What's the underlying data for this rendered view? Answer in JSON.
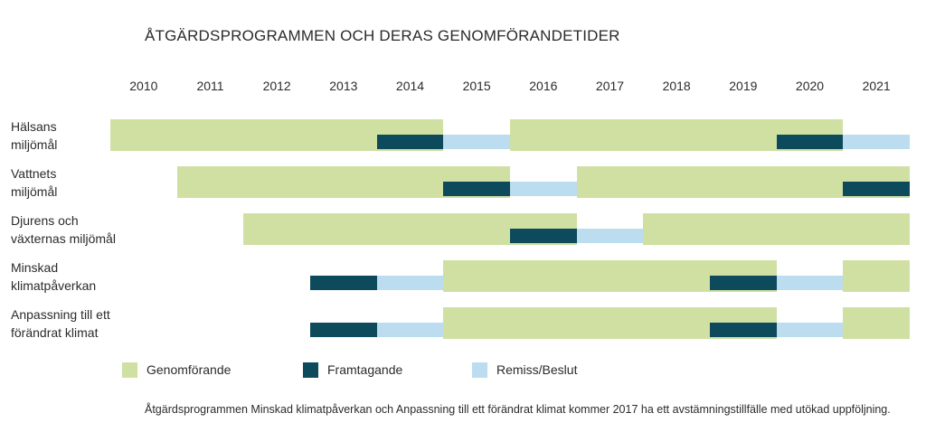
{
  "chart_data": {
    "type": "gantt",
    "title": "ÅTGÄRDSPROGRAMMEN OCH DERAS GENOMFÖRANDETIDER",
    "x_range": [
      2010,
      2022
    ],
    "years": [
      "2010",
      "2011",
      "2012",
      "2013",
      "2014",
      "2015",
      "2016",
      "2017",
      "2018",
      "2019",
      "2020",
      "2021"
    ],
    "legend": [
      {
        "key": "genomforande",
        "label": "Genomförande",
        "color": "#cfe0a2"
      },
      {
        "key": "framtagande",
        "label": "Framtagande",
        "color": "#0c4a5c"
      },
      {
        "key": "remiss",
        "label": "Remiss/Beslut",
        "color": "#bcdcef"
      }
    ],
    "rows": [
      {
        "label": [
          "Hälsans",
          "miljömål"
        ],
        "segments": [
          {
            "phase": "genomforande",
            "start": 2010,
            "end": 2015
          },
          {
            "phase": "framtagande",
            "start": 2014,
            "end": 2015
          },
          {
            "phase": "remiss",
            "start": 2015,
            "end": 2016
          },
          {
            "phase": "genomforande",
            "start": 2016,
            "end": 2021
          },
          {
            "phase": "framtagande",
            "start": 2020,
            "end": 2021
          },
          {
            "phase": "remiss",
            "start": 2021,
            "end": 2022
          }
        ]
      },
      {
        "label": [
          "Vattnets",
          "miljömål"
        ],
        "segments": [
          {
            "phase": "genomforande",
            "start": 2011,
            "end": 2016
          },
          {
            "phase": "framtagande",
            "start": 2015,
            "end": 2016
          },
          {
            "phase": "remiss",
            "start": 2016,
            "end": 2017
          },
          {
            "phase": "genomforande",
            "start": 2017,
            "end": 2022
          },
          {
            "phase": "framtagande",
            "start": 2021,
            "end": 2022
          }
        ]
      },
      {
        "label": [
          "Djurens och",
          "växternas miljömål"
        ],
        "segments": [
          {
            "phase": "genomforande",
            "start": 2012,
            "end": 2017
          },
          {
            "phase": "framtagande",
            "start": 2016,
            "end": 2017
          },
          {
            "phase": "remiss",
            "start": 2017,
            "end": 2018
          },
          {
            "phase": "genomforande",
            "start": 2018,
            "end": 2022
          }
        ]
      },
      {
        "label": [
          "Minskad",
          "klimatpåverkan"
        ],
        "segments": [
          {
            "phase": "framtagande",
            "start": 2013,
            "end": 2014
          },
          {
            "phase": "remiss",
            "start": 2014,
            "end": 2015
          },
          {
            "phase": "genomforande",
            "start": 2015,
            "end": 2020
          },
          {
            "phase": "framtagande",
            "start": 2019,
            "end": 2020
          },
          {
            "phase": "remiss",
            "start": 2020,
            "end": 2021
          },
          {
            "phase": "genomforande",
            "start": 2021,
            "end": 2022
          }
        ]
      },
      {
        "label": [
          "Anpassning till ett",
          "förändrat klimat"
        ],
        "segments": [
          {
            "phase": "framtagande",
            "start": 2013,
            "end": 2014
          },
          {
            "phase": "remiss",
            "start": 2014,
            "end": 2015
          },
          {
            "phase": "genomforande",
            "start": 2015,
            "end": 2020
          },
          {
            "phase": "framtagande",
            "start": 2019,
            "end": 2020
          },
          {
            "phase": "remiss",
            "start": 2020,
            "end": 2021
          },
          {
            "phase": "genomforande",
            "start": 2021,
            "end": 2022
          }
        ]
      }
    ],
    "footnote": "Åtgärdsprogrammen Minskad klimatpåverkan och Anpassning till ett förändrat klimat kommer 2017 ha ett avstämningstillfälle med utökad uppföljning."
  }
}
